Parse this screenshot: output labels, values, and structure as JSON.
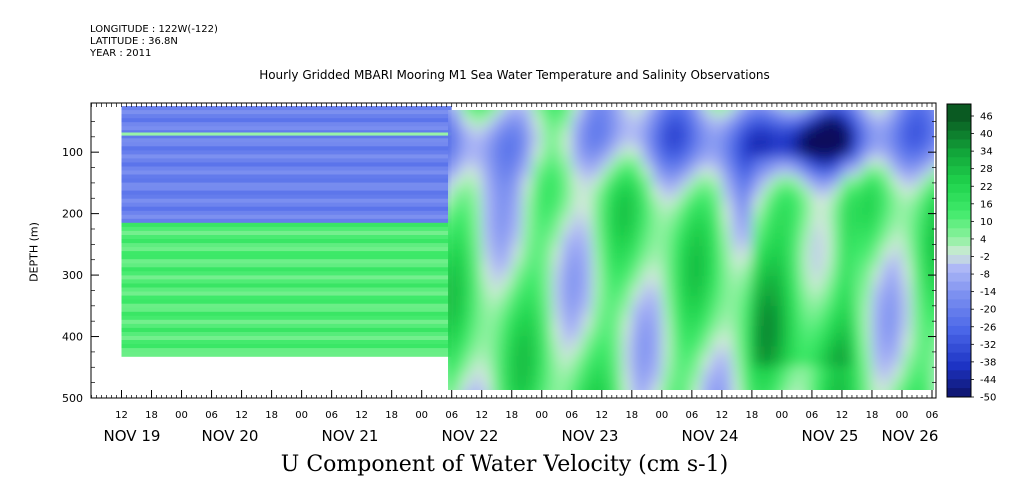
{
  "header": {
    "longitude": "LONGITUDE : 122W(-122)",
    "latitude": "LATITUDE : 36.8N",
    "year": "YEAR : 2011"
  },
  "chart_data": {
    "type": "heatmap",
    "title": "Hourly Gridded MBARI Mooring M1 Sea Water Temperature and Salinity Observations",
    "xlabel": "U Component of Water Velocity (cm s-1)",
    "ylabel": "DEPTH (m)",
    "y_axis": {
      "range": [
        500,
        20
      ],
      "inverted": true,
      "ticks": [
        100,
        200,
        300,
        400,
        500
      ]
    },
    "x_axis": {
      "unit": "hours",
      "hour_ticks": [
        "12",
        "18",
        "00",
        "06",
        "12",
        "18",
        "00",
        "06",
        "12",
        "18",
        "00",
        "06",
        "12",
        "18",
        "00",
        "06",
        "12",
        "18",
        "00",
        "06",
        "12",
        "18",
        "00",
        "06",
        "12",
        "18",
        "00",
        "06"
      ],
      "date_labels": [
        "NOV 19",
        "NOV 20",
        "NOV 21",
        "NOV 22",
        "NOV 23",
        "NOV 24",
        "NOV 25",
        "NOV 26"
      ]
    },
    "colorbar": {
      "labels": [
        "46",
        "40",
        "34",
        "28",
        "22",
        "16",
        "10",
        "4",
        "-2",
        "-8",
        "-14",
        "-20",
        "-26",
        "-32",
        "-38",
        "-44",
        "-50"
      ],
      "stops": [
        {
          "value": -50,
          "color": "#0b0f5c"
        },
        {
          "value": -38,
          "color": "#1d33c4"
        },
        {
          "value": -26,
          "color": "#4a66e8"
        },
        {
          "value": -14,
          "color": "#7c90f0"
        },
        {
          "value": -5,
          "color": "#aeb8f6"
        },
        {
          "value": 0,
          "color": "#cfe9d8"
        },
        {
          "value": 5,
          "color": "#8ff2a0"
        },
        {
          "value": 14,
          "color": "#3fea6a"
        },
        {
          "value": 24,
          "color": "#1fd24c"
        },
        {
          "value": 34,
          "color": "#12a63a"
        },
        {
          "value": 46,
          "color": "#0a5a22"
        }
      ]
    },
    "regions": [
      {
        "name": "early-upper",
        "x_range": [
          "NOV 19 12",
          "NOV 22 06"
        ],
        "depth_range": [
          25,
          215
        ],
        "value_approx": -18
      },
      {
        "name": "early-thin-line",
        "x_range": [
          "NOV 19 12",
          "NOV 22 06"
        ],
        "depth_range": [
          68,
          72
        ],
        "value_approx": 8
      },
      {
        "name": "early-lower",
        "x_range": [
          "NOV 19 12",
          "NOV 22 06"
        ],
        "depth_range": [
          215,
          432
        ],
        "value_approx": 12
      },
      {
        "name": "late-variable",
        "x_range": [
          "NOV 22 06",
          "NOV 26 06"
        ],
        "depth_range": [
          25,
          485
        ],
        "value_approx": 5
      },
      {
        "name": "nov25-core",
        "x_range": [
          "NOV 25 00",
          "NOV 25 12"
        ],
        "depth_range": [
          40,
          110
        ],
        "value_approx": -45
      }
    ]
  }
}
